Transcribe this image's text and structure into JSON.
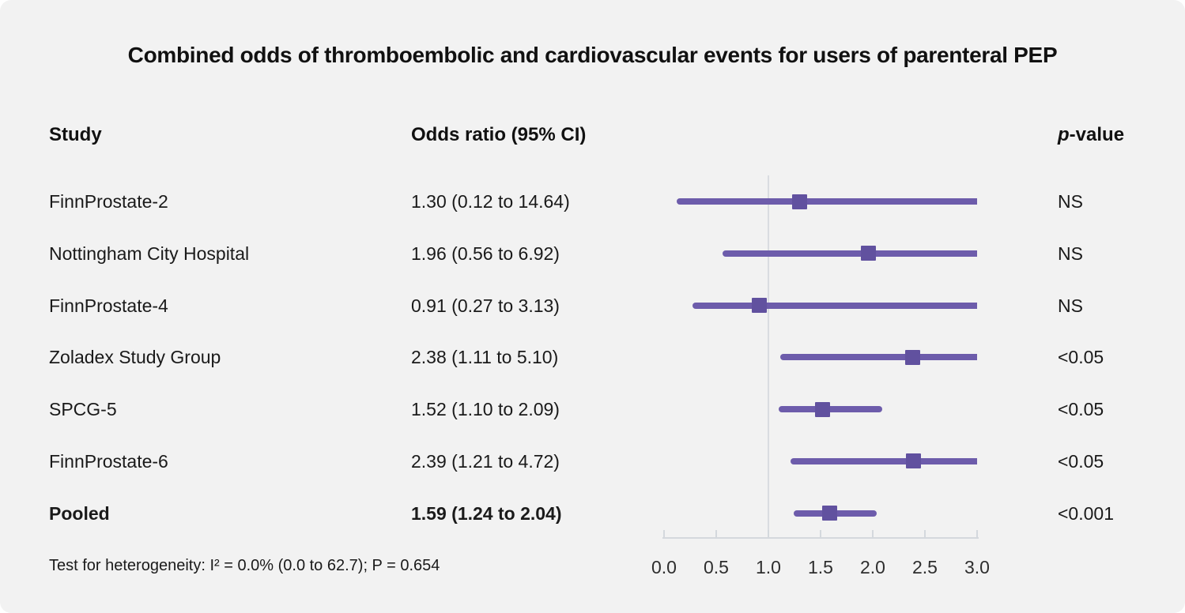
{
  "title": "Combined odds of thromboembolic and cardiovascular events for users of parenteral PEP",
  "columns": {
    "study": "Study",
    "odds_ratio": "Odds ratio (95% CI)",
    "p_italic": "p",
    "p_rest": "-value"
  },
  "footer": "Test for heterogeneity: I² = 0.0% (0.0 to 62.7); P = 0.654",
  "colors": {
    "background": "#f2f2f2",
    "ci_line": "#6d5cab",
    "marker": "#61519f",
    "axis": "#d4d8dd",
    "reference_line": "#d9dce1",
    "text": "#1a1a1a"
  },
  "chart_data": {
    "type": "forest",
    "title": "Combined odds of thromboembolic and cardiovascular events for users of parenteral PEP",
    "xlabel": "",
    "x_range": [
      0.0,
      3.0
    ],
    "x_ticks": [
      0.0,
      0.5,
      1.0,
      1.5,
      2.0,
      2.5,
      3.0
    ],
    "x_tick_labels": [
      "0.0",
      "0.5",
      "1.0",
      "1.5",
      "2.0",
      "2.5",
      "3.0"
    ],
    "reference_line": 1.0,
    "grid": false,
    "studies": [
      {
        "study": "FinnProstate-2",
        "or": 1.3,
        "ci_low": 0.12,
        "ci_high": 14.64,
        "or_label": "1.30 (0.12 to 14.64)",
        "p_value": "NS",
        "bold": false
      },
      {
        "study": "Nottingham City Hospital",
        "or": 1.96,
        "ci_low": 0.56,
        "ci_high": 6.92,
        "or_label": "1.96 (0.56 to 6.92)",
        "p_value": "NS",
        "bold": false
      },
      {
        "study": "FinnProstate-4",
        "or": 0.91,
        "ci_low": 0.27,
        "ci_high": 3.13,
        "or_label": "0.91 (0.27 to 3.13)",
        "p_value": "NS",
        "bold": false
      },
      {
        "study": "Zoladex Study Group",
        "or": 2.38,
        "ci_low": 1.11,
        "ci_high": 5.1,
        "or_label": "2.38 (1.11 to 5.10)",
        "p_value": "<0.05",
        "bold": false
      },
      {
        "study": "SPCG-5",
        "or": 1.52,
        "ci_low": 1.1,
        "ci_high": 2.09,
        "or_label": "1.52 (1.10 to 2.09)",
        "p_value": "<0.05",
        "bold": false
      },
      {
        "study": "FinnProstate-6",
        "or": 2.39,
        "ci_low": 1.21,
        "ci_high": 4.72,
        "or_label": "2.39 (1.21 to 4.72)",
        "p_value": "<0.05",
        "bold": false
      },
      {
        "study": "Pooled",
        "or": 1.59,
        "ci_low": 1.24,
        "ci_high": 2.04,
        "or_label": "1.59 (1.24 to 2.04)",
        "p_value": "<0.001",
        "bold": true
      }
    ]
  }
}
